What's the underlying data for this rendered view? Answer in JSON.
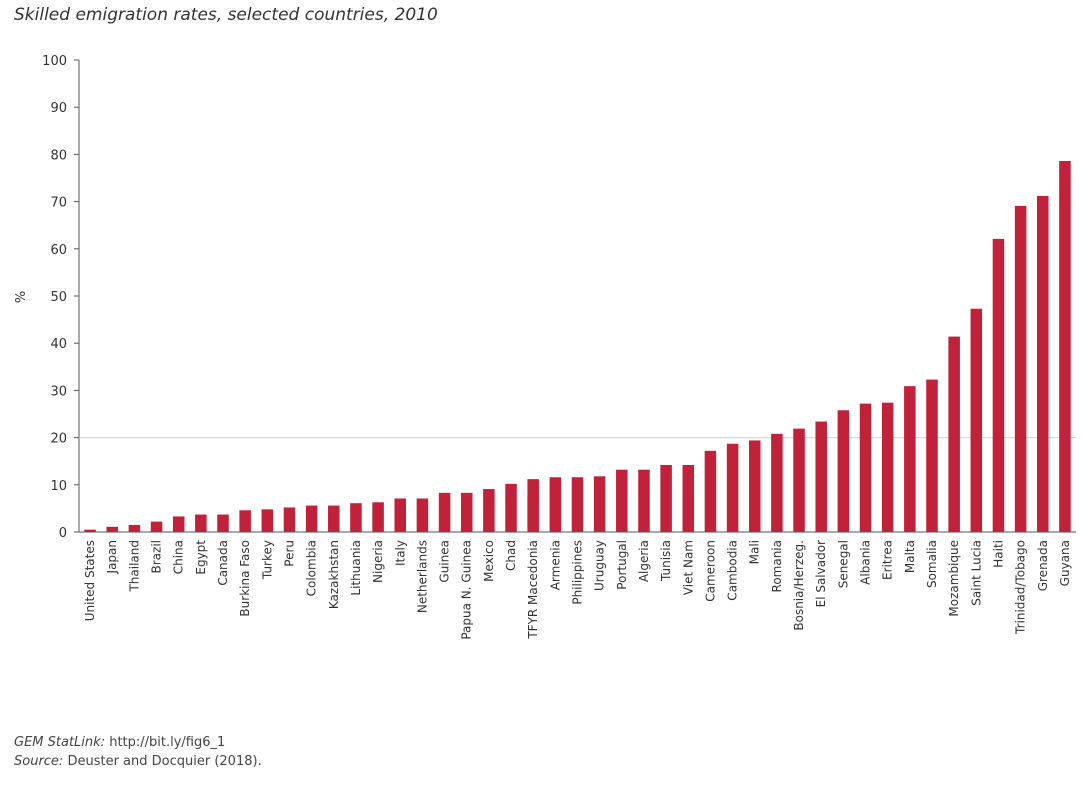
{
  "chart_data": {
    "type": "bar",
    "title": "Skilled emigration rates, selected countries, 2010",
    "ylabel": "%",
    "xlabel": "",
    "ylim": [
      0,
      100
    ],
    "yticks": [
      0,
      10,
      20,
      30,
      40,
      50,
      60,
      70,
      80,
      90,
      100
    ],
    "reference_line": 20,
    "bar_color": "#c0223b",
    "categories": [
      "United States",
      "Japan",
      "Thailand",
      "Brazil",
      "China",
      "Egypt",
      "Canada",
      "Burkina Faso",
      "Turkey",
      "Peru",
      "Colombia",
      "Kazakhstan",
      "Lithuania",
      "Nigeria",
      "Italy",
      "Netherlands",
      "Guinea",
      "Papua N. Guinea",
      "Mexico",
      "Chad",
      "TFYR Macedonia",
      "Armenia",
      "Philippines",
      "Uruguay",
      "Portugal",
      "Algeria",
      "Tunisia",
      "Viet Nam",
      "Cameroon",
      "Cambodia",
      "Mali",
      "Romania",
      "Bosnia/Herzeg.",
      "El Salvador",
      "Senegal",
      "Albania",
      "Eritrea",
      "Malta",
      "Somalia",
      "Mozambique",
      "Saint Lucia",
      "Haiti",
      "Trinidad/Tobago",
      "Grenada",
      "Guyana"
    ],
    "values": [
      0.5,
      1.1,
      1.5,
      2.2,
      3.3,
      3.7,
      3.7,
      4.6,
      4.8,
      5.2,
      5.6,
      5.6,
      6.1,
      6.3,
      7.1,
      7.1,
      8.3,
      8.3,
      9.1,
      10.2,
      11.2,
      11.6,
      11.6,
      11.8,
      13.2,
      13.2,
      14.2,
      14.2,
      17.2,
      18.7,
      19.4,
      20.8,
      21.9,
      23.4,
      25.8,
      27.2,
      27.4,
      30.9,
      32.3,
      41.4,
      47.3,
      62.1,
      69.1,
      71.2,
      78.6
    ]
  },
  "footer": {
    "statlink_label": "GEM StatLink:",
    "statlink_url": "http://bit.ly/fig6_1",
    "source_label": "Source:",
    "source_text": "Deuster and Docquier (2018)."
  }
}
